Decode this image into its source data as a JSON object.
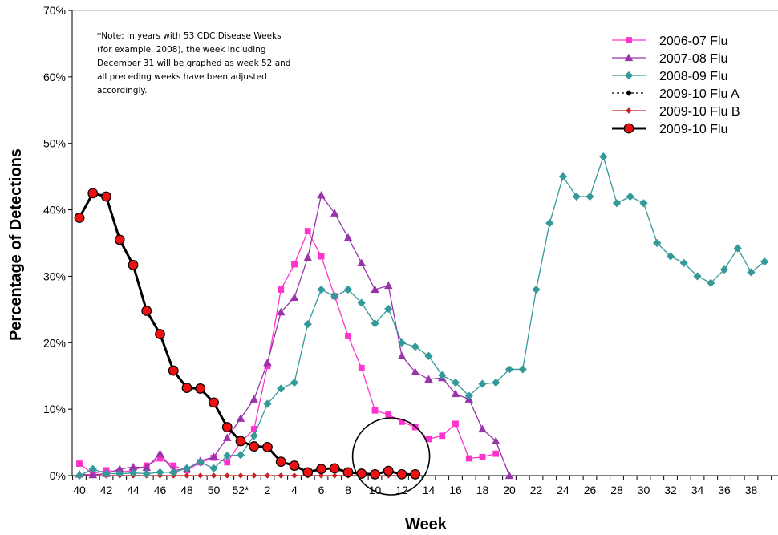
{
  "chart_data": {
    "type": "line",
    "title": "",
    "xlabel": "Week",
    "ylabel": "Percentage of Detections",
    "ylim": [
      0,
      70
    ],
    "y_ticks": [
      "0%",
      "10%",
      "20%",
      "30%",
      "40%",
      "50%",
      "60%",
      "70%"
    ],
    "x_ticks": [
      "40",
      "42",
      "44",
      "46",
      "48",
      "50",
      "52*",
      "2",
      "4",
      "6",
      "8",
      "10",
      "12",
      "14",
      "16",
      "18",
      "20",
      "22",
      "24",
      "26",
      "28",
      "30",
      "32",
      "34",
      "36",
      "38"
    ],
    "categories": [
      "40",
      "41",
      "42",
      "43",
      "44",
      "45",
      "46",
      "47",
      "48",
      "49",
      "50",
      "51",
      "52*",
      "1",
      "2",
      "3",
      "4",
      "5",
      "6",
      "7",
      "8",
      "9",
      "10",
      "11",
      "12",
      "13",
      "14",
      "15",
      "16",
      "17",
      "18",
      "19",
      "20",
      "21",
      "22",
      "23",
      "24",
      "25",
      "26",
      "27",
      "28",
      "29",
      "30",
      "31",
      "32",
      "33",
      "34",
      "35",
      "36",
      "37",
      "38",
      "39"
    ],
    "grid": false,
    "legend_position": "top-right",
    "note": [
      "*Note: In years with 53 CDC Disease Weeks",
      "(for example, 2008), the week including",
      "December 31 will be graphed as week 52 and",
      "all preceding weeks have been adjusted",
      "accordingly."
    ],
    "annotation": "circle around weeks 10-13",
    "series": [
      {
        "name": "2006-07 Flu",
        "color": "#ff33cc",
        "marker": "square",
        "values": [
          1.8,
          0.3,
          0.8,
          0.5,
          0.8,
          1.5,
          2.6,
          1.5,
          0.8,
          2.0,
          2.7,
          2.0,
          5.0,
          7.0,
          16.5,
          28.0,
          31.8,
          36.8,
          33.0,
          27.0,
          21.0,
          16.2,
          9.8,
          9.2,
          8.1,
          7.3,
          5.5,
          6.0,
          7.8,
          2.6,
          2.8,
          3.3,
          null,
          null,
          null,
          null,
          null,
          null,
          null,
          null,
          null,
          null,
          null,
          null,
          null,
          null,
          null,
          null,
          null,
          null,
          null,
          null
        ]
      },
      {
        "name": "2007-08 Flu",
        "color": "#9933aa",
        "marker": "triangle",
        "values": [
          0.2,
          0.1,
          0.3,
          1.0,
          1.3,
          1.2,
          3.3,
          0.8,
          1.0,
          2.2,
          2.8,
          5.7,
          8.6,
          11.5,
          17.0,
          24.6,
          26.8,
          32.8,
          42.2,
          39.5,
          35.8,
          32.0,
          28.0,
          28.6,
          18.0,
          15.6,
          14.5,
          14.7,
          12.3,
          11.5,
          7.0,
          5.2,
          0.0,
          null,
          null,
          null,
          null,
          null,
          null,
          null,
          null,
          null,
          null,
          null,
          null,
          null,
          null,
          null,
          null,
          null,
          null,
          null
        ]
      },
      {
        "name": "2008-09 Flu",
        "color": "#339999",
        "marker": "diamond",
        "values": [
          0.0,
          1.0,
          0.3,
          0.3,
          0.4,
          0.3,
          0.5,
          0.5,
          1.1,
          2.0,
          1.1,
          3.0,
          3.1,
          6.0,
          10.8,
          13.1,
          14.0,
          22.8,
          28.0,
          27.0,
          28.0,
          26.0,
          22.9,
          25.1,
          20.0,
          19.4,
          18.0,
          15.1,
          14.0,
          12.0,
          13.8,
          14.0,
          16.0,
          16.0,
          28.0,
          38.0,
          45.0,
          42.0,
          42.0,
          48.0,
          41.0,
          42.0,
          41.0,
          35.0,
          33.0,
          32.0,
          30.0,
          29.0,
          31.0,
          34.2,
          30.6,
          32.2
        ]
      },
      {
        "name": "2009-10 Flu A",
        "color": "#000000",
        "marker": "diamond",
        "dashed": true,
        "values": [
          0,
          0,
          0,
          0,
          0,
          0,
          0,
          0,
          0,
          0,
          0,
          0,
          0,
          0,
          0,
          0,
          0,
          0,
          0,
          0,
          0,
          0,
          0,
          0,
          0,
          0,
          null,
          null,
          null,
          null,
          null,
          null,
          null,
          null,
          null,
          null,
          null,
          null,
          null,
          null,
          null,
          null,
          null,
          null,
          null,
          null,
          null,
          null,
          null,
          null,
          null,
          null
        ]
      },
      {
        "name": "2009-10 Flu B",
        "color": "#cc2222",
        "marker": "diamond",
        "values": [
          0,
          0,
          0,
          0,
          0,
          0,
          0,
          0,
          0,
          0,
          0,
          0,
          0,
          0,
          0,
          0,
          0,
          0,
          0,
          0,
          0,
          0,
          0,
          0,
          0,
          0,
          null,
          null,
          null,
          null,
          null,
          null,
          null,
          null,
          null,
          null,
          null,
          null,
          null,
          null,
          null,
          null,
          null,
          null,
          null,
          null,
          null,
          null,
          null,
          null,
          null,
          null
        ]
      },
      {
        "name": "2009-10 Flu",
        "color": "#000000",
        "marker_fill": "#ee1111",
        "marker": "circle",
        "bold": true,
        "values": [
          38.8,
          42.5,
          42.0,
          35.5,
          31.7,
          24.8,
          21.3,
          15.8,
          13.2,
          13.1,
          11.0,
          7.3,
          5.2,
          4.4,
          4.3,
          2.1,
          1.5,
          0.5,
          1.0,
          1.1,
          0.5,
          0.3,
          0.2,
          0.7,
          0.2,
          0.2,
          null,
          null,
          null,
          null,
          null,
          null,
          null,
          null,
          null,
          null,
          null,
          null,
          null,
          null,
          null,
          null,
          null,
          null,
          null,
          null,
          null,
          null,
          null,
          null,
          null,
          null
        ]
      }
    ]
  }
}
